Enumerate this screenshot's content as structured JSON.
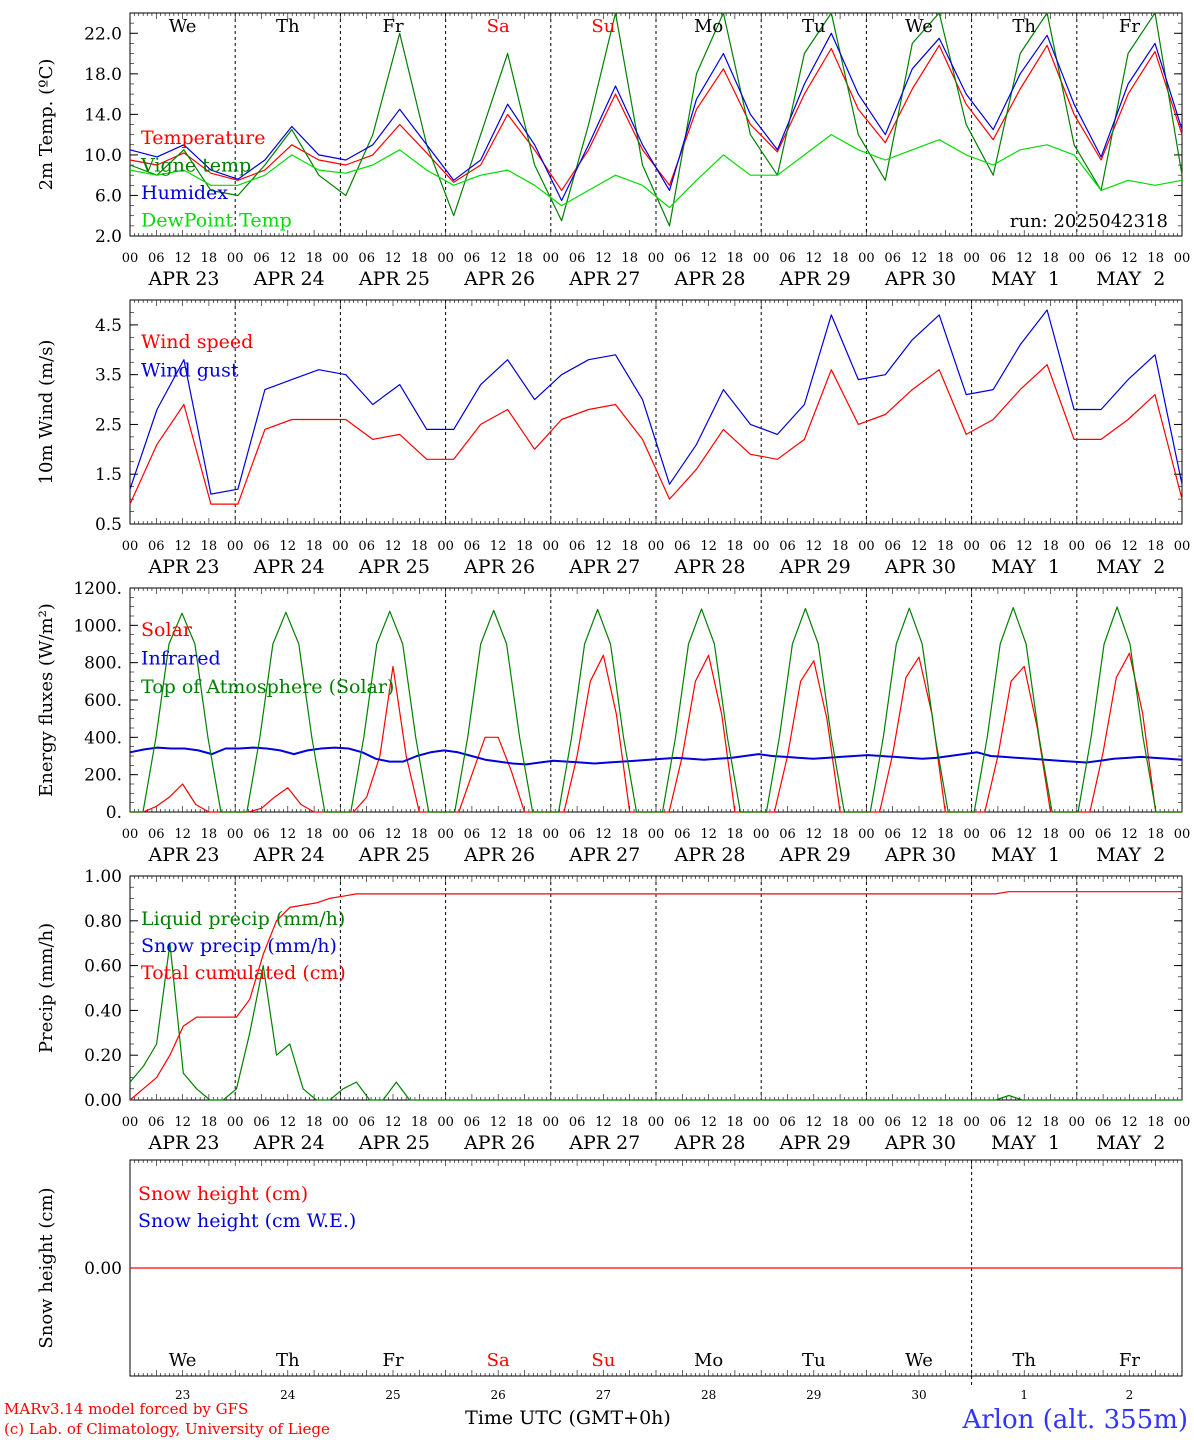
{
  "run_label": "run: 2025042318",
  "station_label": "Arlon (alt. 355m)",
  "footer": {
    "line1": "MARv3.14 model forced by GFS",
    "line2": "(c) Lab. of Climatology, University of Liege",
    "time_label": "Time UTC (GMT+0h)"
  },
  "colors": {
    "red": "#ff0000",
    "green": "#008000",
    "lightgreen": "#00dd00",
    "blue": "#0000dd",
    "station": "#3333ff"
  },
  "days": [
    {
      "name": "We",
      "date": "APR 23",
      "num": "23",
      "weekend": false
    },
    {
      "name": "Th",
      "date": "APR 24",
      "num": "24",
      "weekend": false
    },
    {
      "name": "Fr",
      "date": "APR 25",
      "num": "25",
      "weekend": false
    },
    {
      "name": "Sa",
      "date": "APR 26",
      "num": "26",
      "weekend": true
    },
    {
      "name": "Su",
      "date": "APR 27",
      "num": "27",
      "weekend": true
    },
    {
      "name": "Mo",
      "date": "APR 28",
      "num": "28",
      "weekend": false
    },
    {
      "name": "Tu",
      "date": "APR 29",
      "num": "29",
      "weekend": false
    },
    {
      "name": "We",
      "date": "APR 30",
      "num": "30",
      "weekend": false
    },
    {
      "name": "Th",
      "date": "MAY  1",
      "num": "1",
      "weekend": false
    },
    {
      "name": "Fr",
      "date": "MAY  2",
      "num": "2",
      "weekend": false
    }
  ],
  "hour_labels": [
    "00",
    "06",
    "12",
    "18"
  ],
  "final_hour_label": "00",
  "chart_data": [
    {
      "type": "line",
      "ylabel": "2m Temp. (ºC)",
      "ylim": [
        2.0,
        24.0
      ],
      "yticks": [
        "2.0",
        "6.0",
        "10.0",
        "14.0",
        "18.0",
        "22.0"
      ],
      "yticks_values": [
        2,
        6,
        10,
        14,
        18,
        22
      ],
      "x": "hours since APR 23 00 UTC (points every 6h)",
      "series": [
        {
          "name": "Temperature",
          "color": "#ff0000",
          "values": [
            9.5,
            9.0,
            10.2,
            8.2,
            7.5,
            8.5,
            11.0,
            9.5,
            9.0,
            10.0,
            13.0,
            10.2,
            7.3,
            9.0,
            14.0,
            10.5,
            6.5,
            10.5,
            16.0,
            10.5,
            7.0,
            14.5,
            18.5,
            13.0,
            10.3,
            16.0,
            20.5,
            14.5,
            11.2,
            16.5,
            20.8,
            15.0,
            11.5,
            16.5,
            20.8,
            14.0,
            9.5,
            16.0,
            20.2,
            12.0
          ]
        },
        {
          "name": "Vigne temp",
          "color": "#008000",
          "values": [
            9.0,
            8.0,
            10.5,
            6.5,
            6.0,
            9.0,
            12.5,
            8.0,
            6.0,
            12.0,
            22.0,
            11.0,
            4.0,
            12.0,
            20.0,
            9.0,
            3.5,
            13.0,
            25.0,
            9.0,
            3.0,
            18.0,
            26.0,
            12.0,
            8.0,
            20.0,
            27.0,
            12.0,
            7.5,
            21.0,
            27.0,
            13.0,
            8.0,
            20.0,
            26.5,
            11.0,
            6.5,
            20.0,
            26.0,
            8.0
          ]
        },
        {
          "name": "Humidex",
          "color": "#0000dd",
          "values": [
            10.5,
            9.8,
            11.0,
            8.5,
            7.6,
            9.5,
            12.8,
            10.0,
            9.5,
            11.0,
            14.5,
            11.0,
            7.5,
            9.5,
            15.0,
            11.0,
            5.5,
            11.0,
            16.8,
            11.0,
            6.5,
            15.5,
            20.0,
            14.0,
            10.5,
            17.0,
            22.0,
            16.0,
            12.0,
            18.5,
            21.5,
            16.0,
            12.5,
            18.0,
            21.8,
            15.0,
            9.8,
            17.0,
            21.0,
            12.5
          ]
        },
        {
          "name": "DewPoint Temp",
          "color": "#00dd00",
          "values": [
            8.5,
            8.0,
            8.5,
            7.0,
            7.0,
            8.0,
            10.0,
            8.5,
            8.2,
            9.0,
            10.5,
            8.5,
            7.0,
            8.0,
            8.5,
            7.0,
            5.0,
            6.5,
            8.0,
            7.0,
            4.8,
            7.5,
            10.0,
            8.0,
            8.0,
            10.0,
            12.0,
            10.5,
            9.5,
            10.5,
            11.5,
            10.0,
            9.0,
            10.5,
            11.0,
            10.0,
            6.5,
            7.5,
            7.0,
            7.5
          ]
        }
      ]
    },
    {
      "type": "line",
      "ylabel": "10m Wind (m/s)",
      "ylim": [
        0.5,
        5.0
      ],
      "yticks": [
        "0.5",
        "1.5",
        "2.5",
        "3.5",
        "4.5"
      ],
      "yticks_values": [
        0.5,
        1.5,
        2.5,
        3.5,
        4.5
      ],
      "x": "hours since APR 23 00 UTC (points every 6h)",
      "series": [
        {
          "name": "Wind speed",
          "color": "#ff0000",
          "values": [
            0.9,
            2.1,
            2.9,
            0.9,
            0.9,
            2.4,
            2.6,
            2.6,
            2.6,
            2.2,
            2.3,
            1.8,
            1.8,
            2.5,
            2.8,
            2.0,
            2.6,
            2.8,
            2.9,
            2.2,
            1.0,
            1.6,
            2.4,
            1.9,
            1.8,
            2.2,
            3.6,
            2.5,
            2.7,
            3.2,
            3.6,
            2.3,
            2.6,
            3.2,
            3.7,
            2.2,
            2.2,
            2.6,
            3.1,
            1.0
          ]
        },
        {
          "name": "Wind gust",
          "color": "#0000dd",
          "values": [
            1.2,
            2.8,
            3.8,
            1.1,
            1.2,
            3.2,
            3.4,
            3.6,
            3.5,
            2.9,
            3.3,
            2.4,
            2.4,
            3.3,
            3.8,
            3.0,
            3.5,
            3.8,
            3.9,
            3.0,
            1.3,
            2.1,
            3.2,
            2.5,
            2.3,
            2.9,
            4.7,
            3.4,
            3.5,
            4.2,
            4.7,
            3.1,
            3.2,
            4.1,
            4.8,
            2.8,
            2.8,
            3.4,
            3.9,
            1.3
          ]
        }
      ]
    },
    {
      "type": "line",
      "ylabel": "Energy fluxes (W/m²)",
      "ylim": [
        0,
        1200
      ],
      "yticks": [
        "0.",
        "200.",
        "400.",
        "600.",
        "800.",
        "1000.",
        "1200."
      ],
      "yticks_values": [
        0,
        200,
        400,
        600,
        800,
        1000,
        1200
      ],
      "x": "hours since APR 23 00 UTC (points every 3h)",
      "series": [
        {
          "name": "Solar",
          "color": "#ff0000",
          "values": [
            0,
            0,
            30,
            80,
            150,
            40,
            0,
            0,
            0,
            0,
            20,
            80,
            130,
            40,
            0,
            0,
            0,
            0,
            80,
            300,
            780,
            300,
            0,
            0,
            0,
            0,
            200,
            400,
            400,
            220,
            0,
            0,
            0,
            0,
            300,
            700,
            840,
            520,
            0,
            0,
            0,
            0,
            300,
            700,
            840,
            520,
            0,
            0,
            0,
            0,
            300,
            700,
            810,
            500,
            0,
            0,
            0,
            0,
            310,
            720,
            830,
            520,
            0,
            0,
            0,
            0,
            300,
            700,
            780,
            450,
            0,
            0,
            0,
            0,
            320,
            720,
            850,
            530,
            0,
            0,
            0
          ]
        },
        {
          "name": "Infrared",
          "color": "#0000dd",
          "values": [
            320,
            335,
            345,
            340,
            340,
            330,
            310,
            340,
            340,
            345,
            340,
            330,
            310,
            330,
            340,
            345,
            340,
            320,
            285,
            270,
            270,
            300,
            320,
            330,
            320,
            300,
            280,
            270,
            260,
            255,
            265,
            275,
            270,
            265,
            260,
            265,
            270,
            275,
            280,
            285,
            290,
            285,
            280,
            285,
            290,
            300,
            310,
            300,
            295,
            290,
            285,
            290,
            295,
            300,
            305,
            300,
            295,
            290,
            285,
            290,
            300,
            310,
            320,
            300,
            295,
            290,
            285,
            280,
            275,
            270,
            265,
            275,
            285,
            290,
            295,
            290,
            285,
            280
          ]
        },
        {
          "name": "Top of Atmosphere (Solar)",
          "color": "#008000",
          "values": [
            0,
            0,
            400,
            900,
            1065,
            900,
            400,
            0,
            0,
            0,
            400,
            900,
            1070,
            900,
            400,
            0,
            0,
            0,
            400,
            900,
            1075,
            900,
            400,
            0,
            0,
            0,
            400,
            900,
            1080,
            900,
            400,
            0,
            0,
            0,
            400,
            900,
            1085,
            900,
            400,
            0,
            0,
            0,
            400,
            900,
            1088,
            900,
            400,
            0,
            0,
            0,
            400,
            900,
            1090,
            900,
            400,
            0,
            0,
            0,
            400,
            900,
            1092,
            900,
            400,
            0,
            0,
            0,
            400,
            900,
            1095,
            900,
            400,
            0,
            0,
            0,
            400,
            900,
            1098,
            900,
            400,
            0,
            0,
            0
          ]
        }
      ]
    },
    {
      "type": "line",
      "ylabel": "Precip (mm/h)",
      "ylim": [
        0,
        1.0
      ],
      "yticks": [
        "0.00",
        "0.20",
        "0.40",
        "0.60",
        "0.80",
        "1.00"
      ],
      "yticks_values": [
        0,
        0.2,
        0.4,
        0.6,
        0.8,
        1.0
      ],
      "x": "hours since APR 23 00 UTC (points every 3h)",
      "series": [
        {
          "name": "Liquid precip (mm/h)",
          "color": "#008000",
          "values": [
            0.08,
            0.15,
            0.25,
            0.7,
            0.12,
            0.05,
            0.0,
            0.0,
            0.05,
            0.3,
            0.6,
            0.2,
            0.25,
            0.05,
            0.0,
            0.0,
            0.05,
            0.08,
            0.0,
            0.0,
            0.08,
            0.0,
            0.0,
            0.0,
            0.0,
            0.0,
            0.0,
            0.0,
            0.0,
            0.0,
            0.0,
            0.0,
            0.0,
            0.0,
            0.0,
            0.0,
            0.0,
            0.0,
            0.0,
            0.0,
            0.0,
            0.0,
            0.0,
            0.0,
            0.0,
            0.0,
            0.0,
            0.0,
            0.0,
            0.0,
            0.0,
            0.0,
            0.0,
            0.0,
            0.0,
            0.0,
            0.0,
            0.0,
            0.0,
            0.0,
            0.0,
            0.0,
            0.0,
            0.0,
            0.0,
            0.0,
            0.02,
            0.0,
            0.0,
            0.0,
            0.0,
            0.0,
            0.0,
            0.0,
            0.0,
            0.0,
            0.0,
            0.0,
            0.0,
            0.0
          ]
        },
        {
          "name": "Snow precip (mm/h)",
          "color": "#0000dd",
          "values": []
        },
        {
          "name": "Total cumulated (cm)",
          "color": "#ff0000",
          "values": [
            0.0,
            0.05,
            0.1,
            0.2,
            0.33,
            0.37,
            0.37,
            0.37,
            0.37,
            0.45,
            0.65,
            0.8,
            0.86,
            0.87,
            0.88,
            0.9,
            0.91,
            0.92,
            0.92,
            0.92,
            0.92,
            0.92,
            0.92,
            0.92,
            0.92,
            0.92,
            0.92,
            0.92,
            0.92,
            0.92,
            0.92,
            0.92,
            0.92,
            0.92,
            0.92,
            0.92,
            0.92,
            0.92,
            0.92,
            0.92,
            0.92,
            0.92,
            0.92,
            0.92,
            0.92,
            0.92,
            0.92,
            0.92,
            0.92,
            0.92,
            0.92,
            0.92,
            0.92,
            0.92,
            0.92,
            0.92,
            0.92,
            0.92,
            0.92,
            0.92,
            0.92,
            0.92,
            0.92,
            0.92,
            0.92,
            0.92,
            0.93,
            0.93,
            0.93,
            0.93,
            0.93,
            0.93,
            0.93,
            0.93,
            0.93,
            0.93,
            0.93,
            0.93,
            0.93,
            0.93
          ]
        }
      ]
    },
    {
      "type": "line",
      "ylabel": "Snow height (cm)",
      "ylim": [
        -1,
        1
      ],
      "yticks": [
        "0.00"
      ],
      "yticks_values": [
        0
      ],
      "series": [
        {
          "name": "Snow height (cm)",
          "color": "#ff0000",
          "values": [
            0,
            0
          ]
        },
        {
          "name": "Snow height (cm W.E.)",
          "color": "#0000dd",
          "values": []
        }
      ]
    }
  ]
}
